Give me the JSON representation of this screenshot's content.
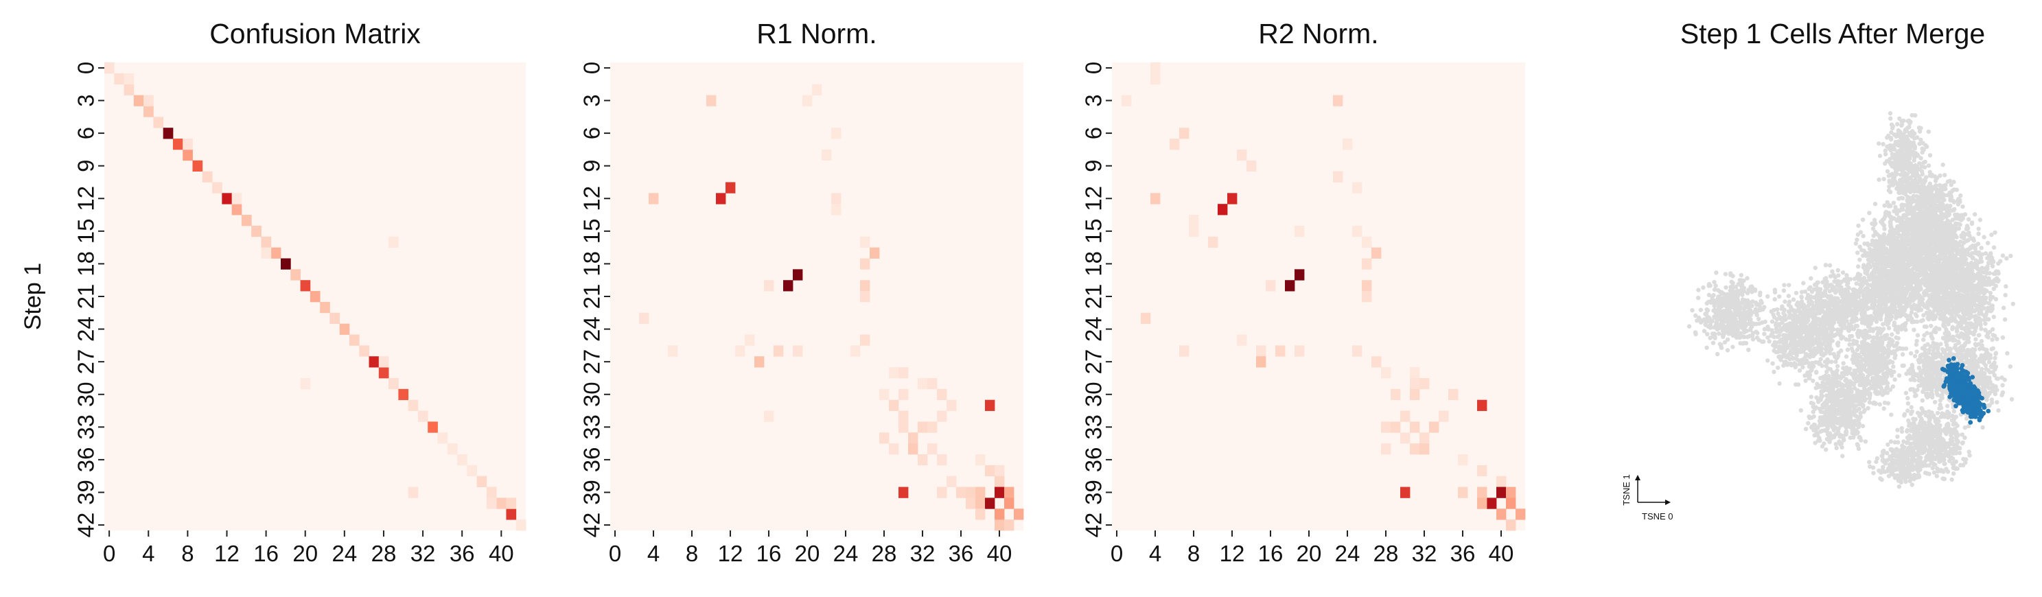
{
  "chart_data": [
    {
      "type": "heatmap",
      "title": "Confusion Matrix",
      "ylabel": "Step 1",
      "xlabel": "",
      "size": 43,
      "x_ticks": [
        "0",
        "4",
        "8",
        "12",
        "16",
        "20",
        "24",
        "28",
        "32",
        "36",
        "40"
      ],
      "y_ticks": [
        "0",
        "3",
        "6",
        "9",
        "12",
        "15",
        "18",
        "21",
        "24",
        "27",
        "30",
        "33",
        "36",
        "39",
        "42"
      ],
      "colormap": [
        "#fff5f0",
        "#fcbba1",
        "#fb6a4a",
        "#cb181d",
        "#67000d"
      ],
      "cells": [
        [
          0,
          0,
          0.08
        ],
        [
          1,
          1,
          0.1
        ],
        [
          2,
          2,
          0.12
        ],
        [
          3,
          3,
          0.25
        ],
        [
          4,
          4,
          0.2
        ],
        [
          5,
          5,
          0.12
        ],
        [
          6,
          6,
          0.95
        ],
        [
          7,
          7,
          0.55
        ],
        [
          8,
          8,
          0.35
        ],
        [
          9,
          9,
          0.55
        ],
        [
          10,
          10,
          0.12
        ],
        [
          11,
          11,
          0.1
        ],
        [
          12,
          12,
          0.75
        ],
        [
          13,
          13,
          0.3
        ],
        [
          14,
          14,
          0.22
        ],
        [
          15,
          15,
          0.18
        ],
        [
          16,
          16,
          0.15
        ],
        [
          17,
          17,
          0.28
        ],
        [
          18,
          18,
          0.98
        ],
        [
          19,
          19,
          0.2
        ],
        [
          20,
          20,
          0.6
        ],
        [
          21,
          21,
          0.3
        ],
        [
          22,
          22,
          0.22
        ],
        [
          23,
          23,
          0.14
        ],
        [
          24,
          24,
          0.25
        ],
        [
          25,
          25,
          0.15
        ],
        [
          26,
          26,
          0.12
        ],
        [
          27,
          27,
          0.72
        ],
        [
          28,
          28,
          0.6
        ],
        [
          29,
          29,
          0.1
        ],
        [
          30,
          30,
          0.55
        ],
        [
          31,
          31,
          0.1
        ],
        [
          32,
          32,
          0.08
        ],
        [
          33,
          33,
          0.5
        ],
        [
          34,
          34,
          0.06
        ],
        [
          35,
          35,
          0.06
        ],
        [
          36,
          36,
          0.06
        ],
        [
          37,
          37,
          0.06
        ],
        [
          38,
          38,
          0.12
        ],
        [
          39,
          39,
          0.1
        ],
        [
          40,
          40,
          0.18
        ],
        [
          41,
          41,
          0.65
        ],
        [
          42,
          42,
          0.06
        ],
        [
          1,
          2,
          0.06
        ],
        [
          3,
          4,
          0.08
        ],
        [
          7,
          8,
          0.08
        ],
        [
          12,
          13,
          0.06
        ],
        [
          17,
          16,
          0.06
        ],
        [
          27,
          28,
          0.08
        ],
        [
          40,
          39,
          0.08
        ],
        [
          16,
          29,
          0.06
        ],
        [
          29,
          20,
          0.05
        ],
        [
          39,
          31,
          0.08
        ],
        [
          40,
          41,
          0.12
        ]
      ]
    },
    {
      "type": "heatmap",
      "title": "R1 Norm.",
      "size": 43,
      "x_ticks": [
        "0",
        "4",
        "8",
        "12",
        "16",
        "20",
        "24",
        "28",
        "32",
        "36",
        "40"
      ],
      "y_ticks": [
        "0",
        "3",
        "6",
        "9",
        "12",
        "15",
        "18",
        "21",
        "24",
        "27",
        "30",
        "33",
        "36",
        "39",
        "42"
      ],
      "cells": [
        [
          3,
          10,
          0.15
        ],
        [
          2,
          21,
          0.06
        ],
        [
          3,
          20,
          0.06
        ],
        [
          6,
          23,
          0.06
        ],
        [
          8,
          22,
          0.06
        ],
        [
          12,
          4,
          0.18
        ],
        [
          12,
          11,
          0.7
        ],
        [
          11,
          12,
          0.65
        ],
        [
          12,
          23,
          0.08
        ],
        [
          13,
          23,
          0.06
        ],
        [
          16,
          26,
          0.06
        ],
        [
          17,
          27,
          0.22
        ],
        [
          18,
          26,
          0.12
        ],
        [
          19,
          19,
          0.95
        ],
        [
          20,
          18,
          0.95
        ],
        [
          20,
          16,
          0.08
        ],
        [
          20,
          26,
          0.15
        ],
        [
          21,
          26,
          0.1
        ],
        [
          23,
          3,
          0.08
        ],
        [
          25,
          14,
          0.06
        ],
        [
          26,
          6,
          0.06
        ],
        [
          26,
          13,
          0.06
        ],
        [
          26,
          17,
          0.12
        ],
        [
          26,
          19,
          0.08
        ],
        [
          26,
          25,
          0.06
        ],
        [
          25,
          26,
          0.1
        ],
        [
          27,
          15,
          0.22
        ],
        [
          28,
          29,
          0.06
        ],
        [
          28,
          30,
          0.08
        ],
        [
          29,
          32,
          0.06
        ],
        [
          29,
          33,
          0.08
        ],
        [
          30,
          28,
          0.06
        ],
        [
          30,
          30,
          0.08
        ],
        [
          30,
          34,
          0.1
        ],
        [
          31,
          29,
          0.12
        ],
        [
          31,
          35,
          0.08
        ],
        [
          31,
          39,
          0.65
        ],
        [
          32,
          16,
          0.06
        ],
        [
          32,
          30,
          0.1
        ],
        [
          32,
          34,
          0.08
        ],
        [
          33,
          30,
          0.1
        ],
        [
          33,
          32,
          0.12
        ],
        [
          33,
          33,
          0.1
        ],
        [
          34,
          28,
          0.1
        ],
        [
          34,
          31,
          0.15
        ],
        [
          35,
          29,
          0.08
        ],
        [
          35,
          31,
          0.18
        ],
        [
          35,
          33,
          0.08
        ],
        [
          36,
          32,
          0.1
        ],
        [
          36,
          34,
          0.08
        ],
        [
          36,
          38,
          0.06
        ],
        [
          37,
          39,
          0.12
        ],
        [
          37,
          40,
          0.08
        ],
        [
          38,
          35,
          0.08
        ],
        [
          38,
          40,
          0.14
        ],
        [
          39,
          30,
          0.65
        ],
        [
          39,
          34,
          0.1
        ],
        [
          39,
          36,
          0.12
        ],
        [
          39,
          37,
          0.14
        ],
        [
          39,
          38,
          0.2
        ],
        [
          39,
          40,
          0.8
        ],
        [
          39,
          41,
          0.3
        ],
        [
          40,
          37,
          0.12
        ],
        [
          40,
          38,
          0.2
        ],
        [
          40,
          39,
          0.85
        ],
        [
          40,
          41,
          0.35
        ],
        [
          41,
          38,
          0.12
        ],
        [
          41,
          40,
          0.35
        ],
        [
          41,
          42,
          0.3
        ],
        [
          42,
          40,
          0.2
        ],
        [
          42,
          41,
          0.15
        ]
      ]
    },
    {
      "type": "heatmap",
      "title": "R2 Norm.",
      "size": 43,
      "x_ticks": [
        "0",
        "4",
        "8",
        "12",
        "16",
        "20",
        "24",
        "28",
        "32",
        "36",
        "40"
      ],
      "y_ticks": [
        "0",
        "3",
        "6",
        "9",
        "12",
        "15",
        "18",
        "21",
        "24",
        "27",
        "30",
        "33",
        "36",
        "39",
        "42"
      ],
      "cells": [
        [
          0,
          4,
          0.06
        ],
        [
          1,
          4,
          0.06
        ],
        [
          3,
          1,
          0.06
        ],
        [
          3,
          23,
          0.15
        ],
        [
          6,
          7,
          0.12
        ],
        [
          7,
          6,
          0.1
        ],
        [
          7,
          24,
          0.06
        ],
        [
          8,
          13,
          0.08
        ],
        [
          9,
          14,
          0.08
        ],
        [
          10,
          23,
          0.08
        ],
        [
          11,
          25,
          0.06
        ],
        [
          12,
          4,
          0.18
        ],
        [
          12,
          12,
          0.7
        ],
        [
          13,
          11,
          0.75
        ],
        [
          14,
          8,
          0.06
        ],
        [
          15,
          8,
          0.06
        ],
        [
          15,
          19,
          0.06
        ],
        [
          15,
          25,
          0.06
        ],
        [
          16,
          10,
          0.1
        ],
        [
          16,
          26,
          0.06
        ],
        [
          17,
          27,
          0.18
        ],
        [
          18,
          26,
          0.1
        ],
        [
          19,
          19,
          0.95
        ],
        [
          20,
          18,
          0.95
        ],
        [
          20,
          16,
          0.08
        ],
        [
          20,
          26,
          0.15
        ],
        [
          21,
          26,
          0.1
        ],
        [
          23,
          3,
          0.12
        ],
        [
          25,
          13,
          0.06
        ],
        [
          26,
          7,
          0.08
        ],
        [
          26,
          15,
          0.08
        ],
        [
          26,
          17,
          0.12
        ],
        [
          26,
          19,
          0.08
        ],
        [
          26,
          25,
          0.08
        ],
        [
          27,
          15,
          0.22
        ],
        [
          27,
          27,
          0.1
        ],
        [
          28,
          28,
          0.06
        ],
        [
          28,
          31,
          0.06
        ],
        [
          29,
          31,
          0.08
        ],
        [
          29,
          32,
          0.1
        ],
        [
          30,
          29,
          0.1
        ],
        [
          30,
          31,
          0.12
        ],
        [
          30,
          35,
          0.1
        ],
        [
          31,
          38,
          0.65
        ],
        [
          32,
          30,
          0.1
        ],
        [
          32,
          34,
          0.08
        ],
        [
          33,
          28,
          0.1
        ],
        [
          33,
          29,
          0.12
        ],
        [
          33,
          31,
          0.12
        ],
        [
          33,
          33,
          0.15
        ],
        [
          34,
          30,
          0.08
        ],
        [
          34,
          32,
          0.1
        ],
        [
          35,
          28,
          0.08
        ],
        [
          35,
          31,
          0.12
        ],
        [
          35,
          32,
          0.15
        ],
        [
          36,
          36,
          0.06
        ],
        [
          37,
          38,
          0.1
        ],
        [
          38,
          40,
          0.1
        ],
        [
          39,
          38,
          0.2
        ],
        [
          39,
          36,
          0.14
        ],
        [
          39,
          30,
          0.65
        ],
        [
          39,
          40,
          0.85
        ],
        [
          39,
          41,
          0.3
        ],
        [
          40,
          39,
          0.8
        ],
        [
          40,
          38,
          0.25
        ],
        [
          40,
          41,
          0.35
        ],
        [
          41,
          40,
          0.3
        ],
        [
          41,
          42,
          0.3
        ],
        [
          42,
          41,
          0.15
        ]
      ]
    },
    {
      "type": "scatter",
      "title": "Step 1 Cells After Merge",
      "xlabel": "TSNE 0",
      "ylabel": "TSNE 1",
      "background_color": "#dcdcdc",
      "highlight_color": "#1f77b4",
      "background_clusters": [
        [
          0.71,
          0.8,
          0.05,
          0.08
        ],
        [
          0.77,
          0.68,
          0.08,
          0.09
        ],
        [
          0.66,
          0.55,
          0.07,
          0.11
        ],
        [
          0.75,
          0.58,
          0.1,
          0.13
        ],
        [
          0.86,
          0.52,
          0.09,
          0.12
        ],
        [
          0.55,
          0.48,
          0.09,
          0.07
        ],
        [
          0.27,
          0.47,
          0.08,
          0.07
        ],
        [
          0.45,
          0.42,
          0.08,
          0.08
        ],
        [
          0.63,
          0.36,
          0.06,
          0.08
        ],
        [
          0.78,
          0.34,
          0.06,
          0.06
        ],
        [
          0.54,
          0.27,
          0.07,
          0.09
        ],
        [
          0.88,
          0.33,
          0.07,
          0.08
        ],
        [
          0.78,
          0.19,
          0.08,
          0.07
        ],
        [
          0.7,
          0.14,
          0.06,
          0.04
        ]
      ],
      "highlight_cluster": [
        0.86,
        0.3,
        0.05,
        0.08
      ]
    }
  ]
}
